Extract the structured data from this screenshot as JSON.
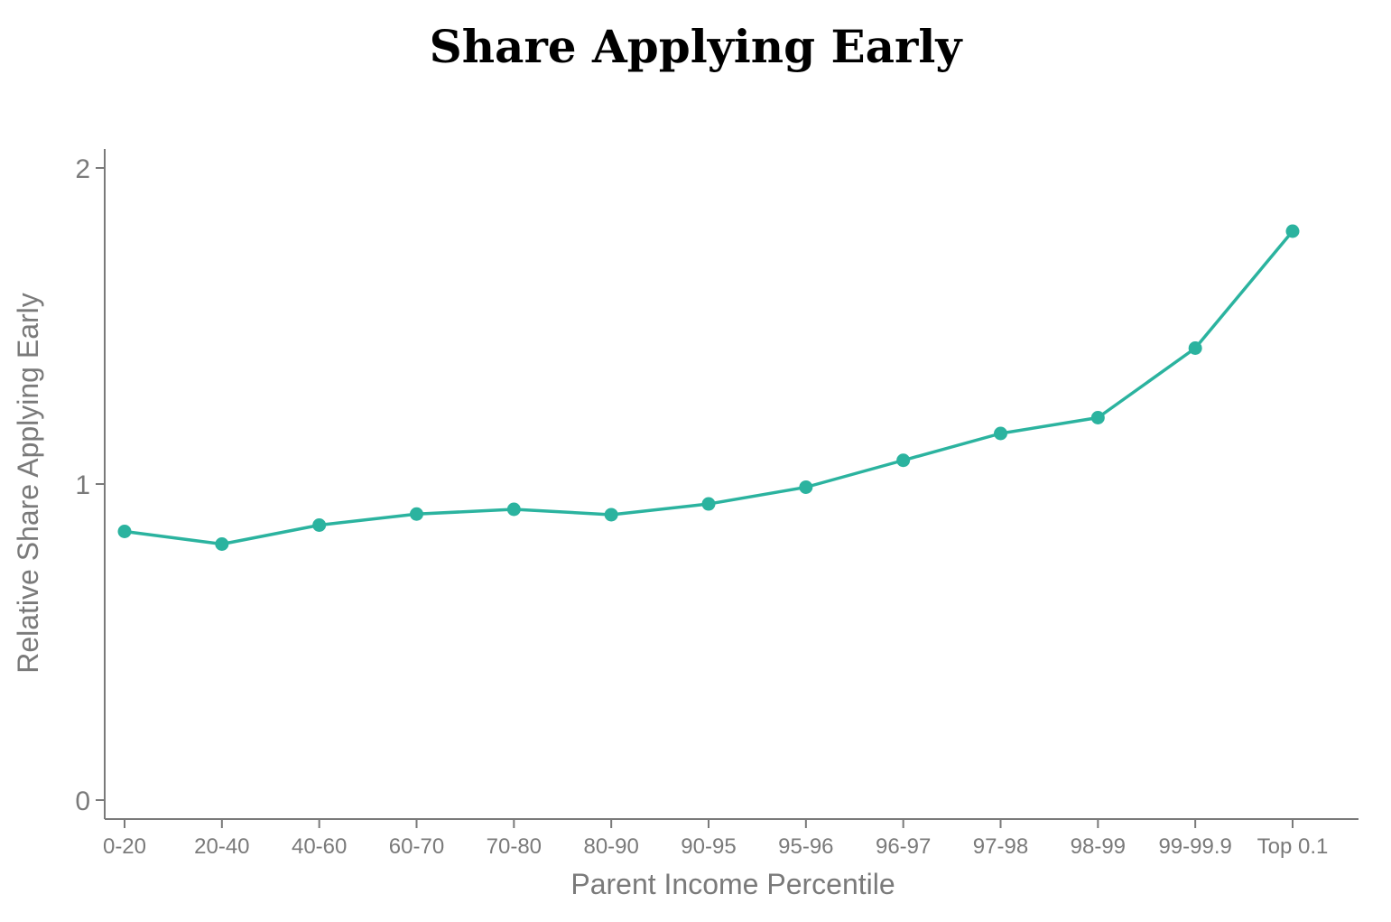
{
  "chart_data": {
    "type": "line",
    "title": "Share Applying Early",
    "xlabel": "Parent Income Percentile",
    "ylabel": "Relative Share Applying Early",
    "categories": [
      "0-20",
      "20-40",
      "40-60",
      "60-70",
      "70-80",
      "80-90",
      "90-95",
      "95-96",
      "96-97",
      "97-98",
      "98-99",
      "99-99.9",
      "Top 0.1"
    ],
    "series": [
      {
        "values": [
          0.85,
          0.81,
          0.87,
          0.905,
          0.92,
          0.903,
          0.937,
          0.99,
          1.075,
          1.16,
          1.21,
          1.43,
          1.8
        ]
      }
    ],
    "ylim": [
      -0.06,
      2.07
    ],
    "yticks": [
      0,
      1,
      2
    ],
    "color": "#2bb39f",
    "grid": false,
    "legend": "none"
  }
}
